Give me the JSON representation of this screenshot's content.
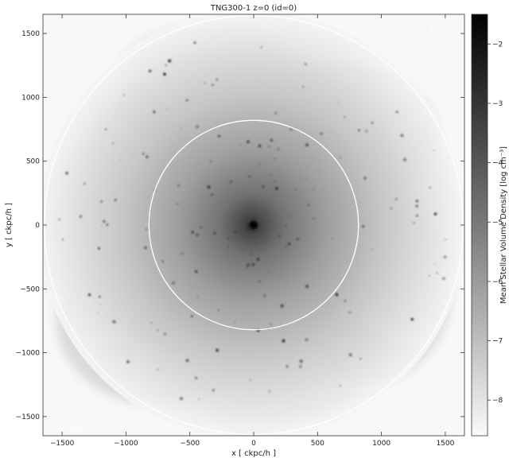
{
  "chart_data": {
    "type": "heatmap",
    "title": "TNG300-1 z=0 (id=0)",
    "xlabel": "x [ ckpc/h ]",
    "ylabel": "y [ ckpc/h ]",
    "xlim": [
      -1650,
      1650
    ],
    "ylim": [
      -1650,
      1650
    ],
    "x_ticks": [
      -1500,
      -1000,
      -500,
      0,
      500,
      1000,
      1500
    ],
    "x_tick_labels": [
      "−1500",
      "−1000",
      "−500",
      "0",
      "500",
      "1000",
      "1500"
    ],
    "y_ticks": [
      -1500,
      -1000,
      -500,
      0,
      500,
      1000,
      1500
    ],
    "y_tick_labels": [
      "−1500",
      "−1000",
      "−500",
      "0",
      "500",
      "1000",
      "1500"
    ],
    "colorbar": {
      "label": "Mean Stellar Volume Density [log cm⁻³]",
      "range": [
        -8.6,
        -1.5
      ],
      "ticks": [
        -2,
        -3,
        -4,
        -5,
        -6,
        -7,
        -8
      ],
      "tick_labels": [
        "−2",
        "−3",
        "−4",
        "−5",
        "−6",
        "−7",
        "−8"
      ],
      "colormap": "gray_r"
    },
    "circles": [
      {
        "name": "inner",
        "cx": 0,
        "cy": 0,
        "r": 820,
        "color": "#ffffff"
      },
      {
        "name": "outer",
        "cx": 0,
        "cy": 0,
        "r": 1640,
        "color": "#ffffff"
      }
    ],
    "annotations": {
      "redshift": "z = 0.0",
      "simulation": "TNG300-1"
    },
    "center_density": -2.0,
    "background_density": -8.6,
    "grid": false
  }
}
